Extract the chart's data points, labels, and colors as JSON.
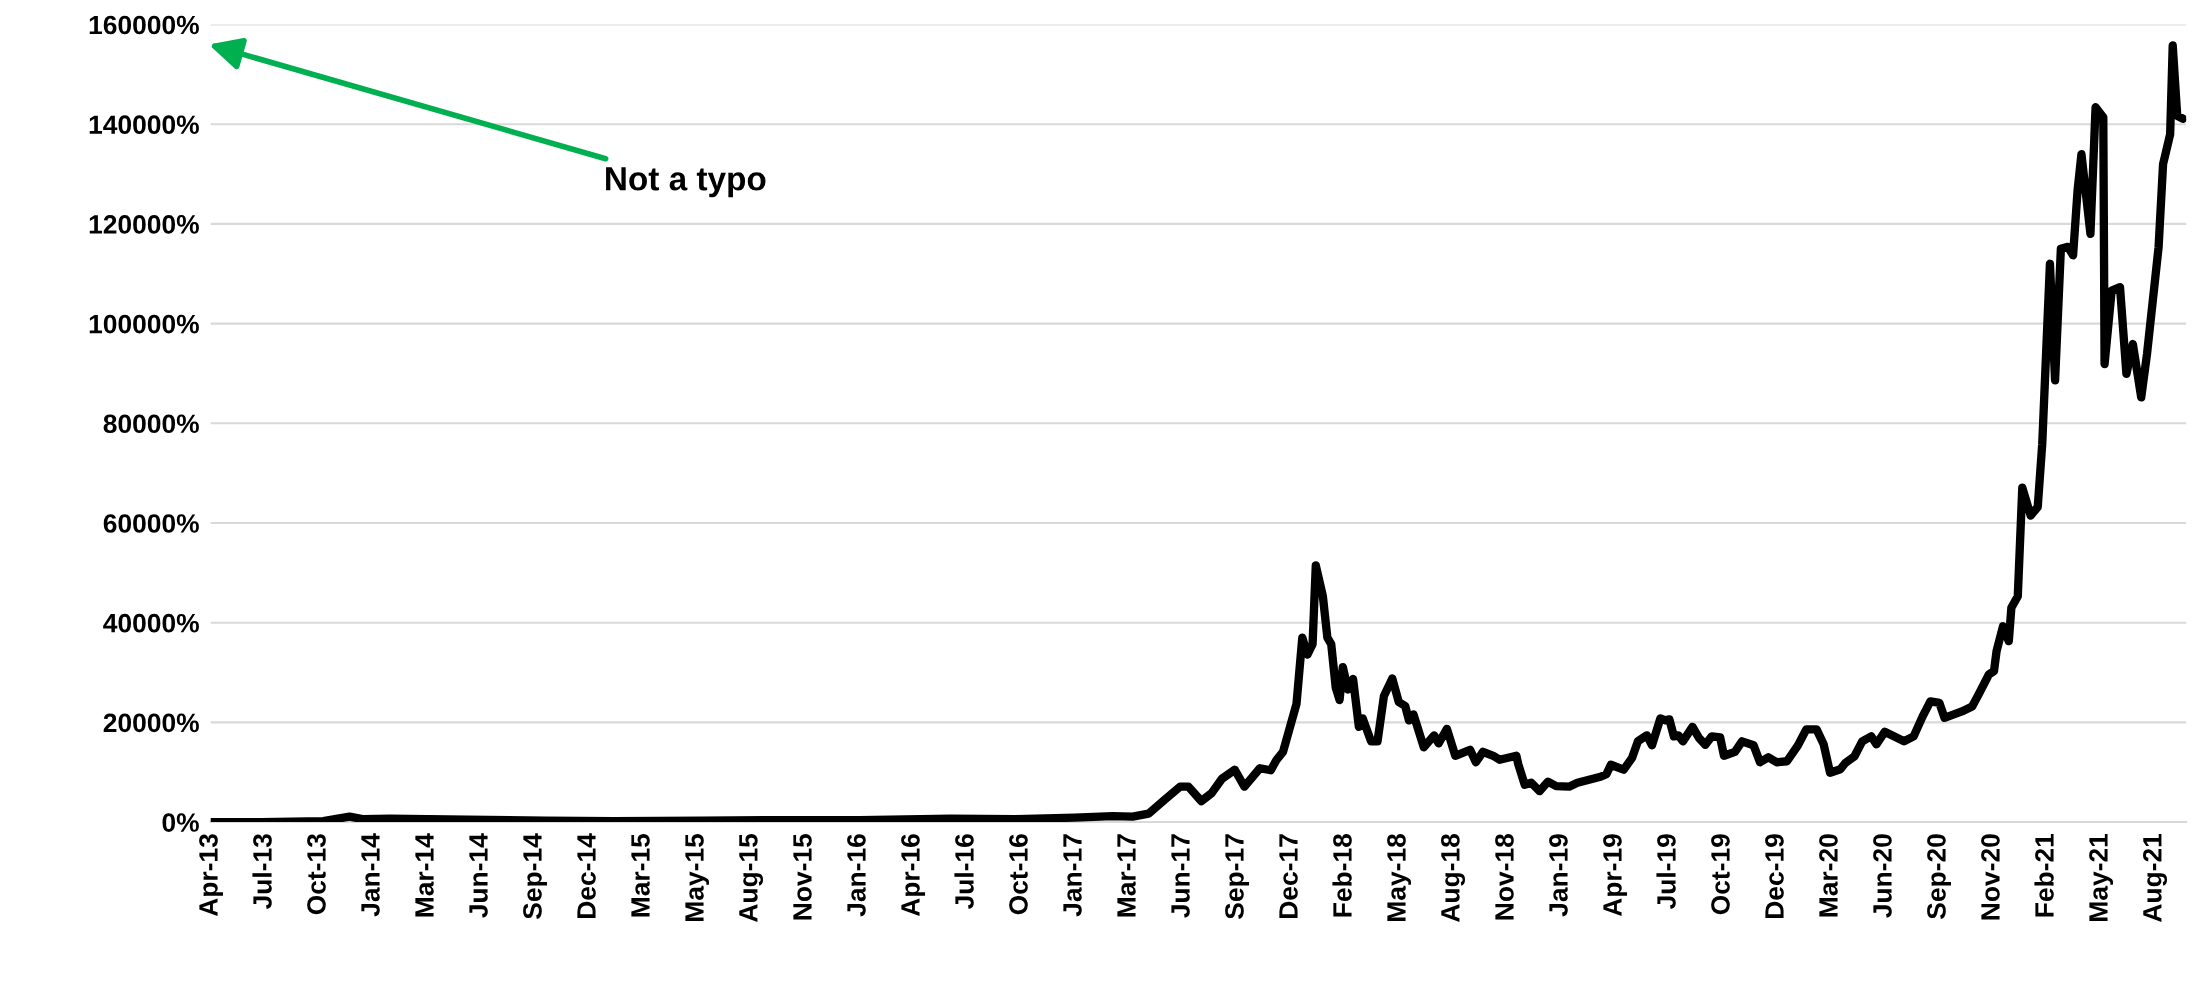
{
  "chart_data": {
    "type": "line",
    "x": [
      "2013-04-28",
      "2013-07-15",
      "2013-10-20",
      "2013-11-30",
      "2013-12-20",
      "2014-02-01",
      "2014-06-01",
      "2014-10-01",
      "2015-01-15",
      "2015-06-01",
      "2015-11-05",
      "2016-02-01",
      "2016-06-22",
      "2016-10-01",
      "2017-01-01",
      "2017-03-01",
      "2017-04-01",
      "2017-04-26",
      "2017-05-22",
      "2017-06-14",
      "2017-06-27",
      "2017-07-17",
      "2017-08-02",
      "2017-08-18",
      "2017-09-07",
      "2017-09-22",
      "2017-10-16",
      "2017-11-02",
      "2017-11-11",
      "2017-11-21",
      "2017-12-12",
      "2017-12-21",
      "2017-12-29",
      "2018-01-06",
      "2018-01-11",
      "2018-01-22",
      "2018-01-29",
      "2018-02-04",
      "2018-02-11",
      "2018-02-17",
      "2018-02-22",
      "2018-03-02",
      "2018-03-10",
      "2018-03-19",
      "2018-03-25",
      "2018-04-07",
      "2018-04-17",
      "2018-04-27",
      "2018-05-10",
      "2018-05-20",
      "2018-05-30",
      "2018-06-05",
      "2018-06-12",
      "2018-06-28",
      "2018-07-14",
      "2018-07-21",
      "2018-08-03",
      "2018-08-16",
      "2018-09-08",
      "2018-09-17",
      "2018-09-28",
      "2018-10-14",
      "2018-10-24",
      "2018-11-19",
      "2018-11-22",
      "2018-12-02",
      "2018-12-12",
      "2018-12-25",
      "2019-01-07",
      "2019-01-20",
      "2019-02-09",
      "2019-02-22",
      "2019-03-30",
      "2019-04-08",
      "2019-04-15",
      "2019-05-05",
      "2019-05-18",
      "2019-05-27",
      "2019-06-10",
      "2019-06-18",
      "2019-07-01",
      "2019-07-09",
      "2019-07-15",
      "2019-07-22",
      "2019-07-29",
      "2019-08-05",
      "2019-08-20",
      "2019-08-30",
      "2019-09-09",
      "2019-09-19",
      "2019-10-02",
      "2019-10-08",
      "2019-10-25",
      "2019-11-05",
      "2019-11-23",
      "2019-12-03",
      "2019-12-16",
      "2019-12-29",
      "2020-01-14",
      "2020-01-31",
      "2020-02-13",
      "2020-02-29",
      "2020-03-11",
      "2020-03-21",
      "2020-04-06",
      "2020-04-14",
      "2020-04-28",
      "2020-05-10",
      "2020-05-24",
      "2020-06-01",
      "2020-06-14",
      "2020-07-14",
      "2020-07-29",
      "2020-08-12",
      "2020-08-24",
      "2020-09-07",
      "2020-09-15",
      "2020-10-12",
      "2020-10-28",
      "2020-11-07",
      "2020-11-23",
      "2020-12-01",
      "2020-12-05",
      "2020-12-15",
      "2020-12-24",
      "2020-12-28",
      "2021-01-07",
      "2021-01-14",
      "2021-01-27",
      "2021-02-07",
      "2021-02-14",
      "2021-02-26",
      "2021-03-06",
      "2021-03-15",
      "2021-03-26",
      "2021-04-03",
      "2021-04-10",
      "2021-04-16",
      "2021-04-30",
      "2021-05-08",
      "2021-05-20",
      "2021-05-22",
      "2021-06-02",
      "2021-06-15",
      "2021-06-25",
      "2021-07-05",
      "2021-07-18",
      "2021-07-27",
      "2021-08-14",
      "2021-08-21",
      "2021-09-01",
      "2021-09-05",
      "2021-09-12",
      "2021-09-21"
    ],
    "series": [
      {
        "color": "#000000",
        "values": [
          0,
          0,
          200,
          1100,
          600,
          700,
          500,
          300,
          200,
          300,
          400,
          400,
          700,
          600,
          900,
          1200,
          1100,
          1700,
          4600,
          7100,
          7100,
          4200,
          5800,
          8700,
          10500,
          7100,
          10800,
          10400,
          12500,
          14100,
          23700,
          37000,
          33600,
          35700,
          51500,
          45300,
          37000,
          35700,
          27000,
          24500,
          31100,
          26600,
          28700,
          19100,
          20800,
          16200,
          16200,
          25300,
          28800,
          24100,
          23300,
          20400,
          21600,
          15000,
          17400,
          15800,
          18700,
          13300,
          14500,
          12000,
          14100,
          13300,
          12500,
          13300,
          11600,
          7500,
          7900,
          6200,
          8100,
          7200,
          7100,
          7900,
          9100,
          9600,
          11500,
          10500,
          12900,
          16200,
          17400,
          15400,
          20800,
          20400,
          20600,
          17200,
          17400,
          16200,
          19100,
          16900,
          15500,
          17200,
          17000,
          13300,
          14100,
          16200,
          15400,
          12000,
          13000,
          12000,
          12200,
          15400,
          18600,
          18600,
          15600,
          9900,
          10600,
          11900,
          13200,
          16200,
          17200,
          15600,
          18100,
          16200,
          17200,
          21200,
          24200,
          23900,
          20900,
          22200,
          23200,
          25600,
          29600,
          30300,
          34300,
          39300,
          36300,
          43000,
          45300,
          67100,
          61500,
          63200,
          75800,
          112000,
          88600,
          115000,
          115400,
          113700,
          126700,
          134000,
          118000,
          143400,
          141400,
          91900,
          106600,
          107300,
          89900,
          95900,
          85200,
          93900,
          115300,
          132000,
          138000,
          155800,
          141700,
          141100
        ]
      }
    ],
    "xlim": [
      "2013-04-28",
      "2021-09-26"
    ],
    "xticks": [
      {
        "value": "2013-04-28",
        "label": "Apr-13"
      },
      {
        "value": "2013-07-21",
        "label": "Jul-13"
      },
      {
        "value": "2013-10-13",
        "label": "Oct-13"
      },
      {
        "value": "2014-01-05",
        "label": "Jan-14"
      },
      {
        "value": "2014-03-30",
        "label": "Mar-14"
      },
      {
        "value": "2014-06-22",
        "label": "Jun-14"
      },
      {
        "value": "2014-09-14",
        "label": "Sep-14"
      },
      {
        "value": "2014-12-07",
        "label": "Dec-14"
      },
      {
        "value": "2015-03-01",
        "label": "Mar-15"
      },
      {
        "value": "2015-05-24",
        "label": "May-15"
      },
      {
        "value": "2015-08-16",
        "label": "Aug-15"
      },
      {
        "value": "2015-11-08",
        "label": "Nov-15"
      },
      {
        "value": "2016-01-31",
        "label": "Jan-16"
      },
      {
        "value": "2016-04-24",
        "label": "Apr-16"
      },
      {
        "value": "2016-07-17",
        "label": "Jul-16"
      },
      {
        "value": "2016-10-09",
        "label": "Oct-16"
      },
      {
        "value": "2017-01-01",
        "label": "Jan-17"
      },
      {
        "value": "2017-03-26",
        "label": "Mar-17"
      },
      {
        "value": "2017-06-18",
        "label": "Jun-17"
      },
      {
        "value": "2017-09-10",
        "label": "Sep-17"
      },
      {
        "value": "2017-12-03",
        "label": "Dec-17"
      },
      {
        "value": "2018-02-25",
        "label": "Feb-18"
      },
      {
        "value": "2018-05-20",
        "label": "May-18"
      },
      {
        "value": "2018-08-12",
        "label": "Aug-18"
      },
      {
        "value": "2018-11-04",
        "label": "Nov-18"
      },
      {
        "value": "2019-01-27",
        "label": "Jan-19"
      },
      {
        "value": "2019-04-21",
        "label": "Apr-19"
      },
      {
        "value": "2019-07-14",
        "label": "Jul-19"
      },
      {
        "value": "2019-10-06",
        "label": "Oct-19"
      },
      {
        "value": "2019-12-29",
        "label": "Dec-19"
      },
      {
        "value": "2020-03-22",
        "label": "Mar-20"
      },
      {
        "value": "2020-06-14",
        "label": "Jun-20"
      },
      {
        "value": "2020-09-06",
        "label": "Sep-20"
      },
      {
        "value": "2020-11-29",
        "label": "Nov-20"
      },
      {
        "value": "2021-02-21",
        "label": "Feb-21"
      },
      {
        "value": "2021-05-16",
        "label": "May-21"
      },
      {
        "value": "2021-08-08",
        "label": "Aug-21"
      }
    ],
    "ylim": [
      0,
      160000
    ],
    "yticks": [
      {
        "value": 0,
        "label": "0%"
      },
      {
        "value": 20000,
        "label": "20000%"
      },
      {
        "value": 40000,
        "label": "40000%"
      },
      {
        "value": 60000,
        "label": "60000%"
      },
      {
        "value": 80000,
        "label": "80000%"
      },
      {
        "value": 100000,
        "label": "100000%"
      },
      {
        "value": 120000,
        "label": "120000%"
      },
      {
        "value": 140000,
        "label": "140000%"
      },
      {
        "value": 160000,
        "label": "160000%"
      }
    ],
    "grid": "y",
    "marker": "none",
    "line_style": "solid",
    "annotations": [
      "Not a typo"
    ]
  }
}
